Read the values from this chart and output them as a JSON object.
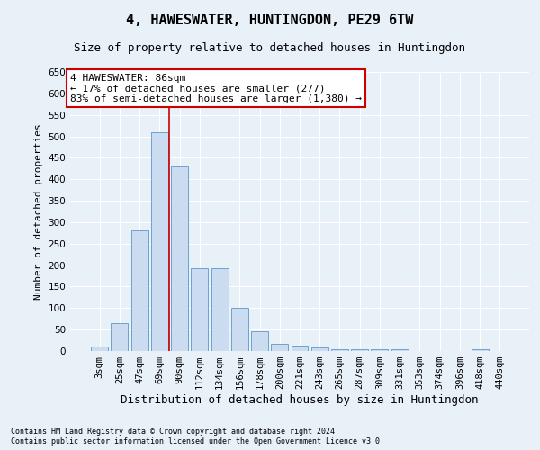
{
  "title": "4, HAWESWATER, HUNTINGDON, PE29 6TW",
  "subtitle": "Size of property relative to detached houses in Huntingdon",
  "xlabel": "Distribution of detached houses by size in Huntingdon",
  "ylabel": "Number of detached properties",
  "footnote1": "Contains HM Land Registry data © Crown copyright and database right 2024.",
  "footnote2": "Contains public sector information licensed under the Open Government Licence v3.0.",
  "categories": [
    "3sqm",
    "25sqm",
    "47sqm",
    "69sqm",
    "90sqm",
    "112sqm",
    "134sqm",
    "156sqm",
    "178sqm",
    "200sqm",
    "221sqm",
    "243sqm",
    "265sqm",
    "287sqm",
    "309sqm",
    "331sqm",
    "353sqm",
    "374sqm",
    "396sqm",
    "418sqm",
    "440sqm"
  ],
  "values": [
    10,
    65,
    280,
    510,
    430,
    192,
    192,
    100,
    47,
    16,
    12,
    9,
    5,
    5,
    5,
    5,
    0,
    0,
    0,
    5,
    0
  ],
  "bar_color": "#ccdcf0",
  "bar_edge_color": "#5b97cb",
  "bg_color": "#e8f0f8",
  "grid_color": "#ffffff",
  "annotation_line1": "4 HAWESWATER: 86sqm",
  "annotation_line2": "← 17% of detached houses are smaller (277)",
  "annotation_line3": "83% of semi-detached houses are larger (1,380) →",
  "annotation_box_color": "#ffffff",
  "annotation_box_edge": "#cc0000",
  "vline_color": "#cc0000",
  "ylim": [
    0,
    650
  ],
  "yticks": [
    0,
    50,
    100,
    150,
    200,
    250,
    300,
    350,
    400,
    450,
    500,
    550,
    600,
    650
  ],
  "title_fontsize": 11,
  "subtitle_fontsize": 9,
  "xlabel_fontsize": 9,
  "ylabel_fontsize": 8,
  "annot_fontsize": 8,
  "tick_fontsize": 7.5,
  "footnote_fontsize": 6
}
